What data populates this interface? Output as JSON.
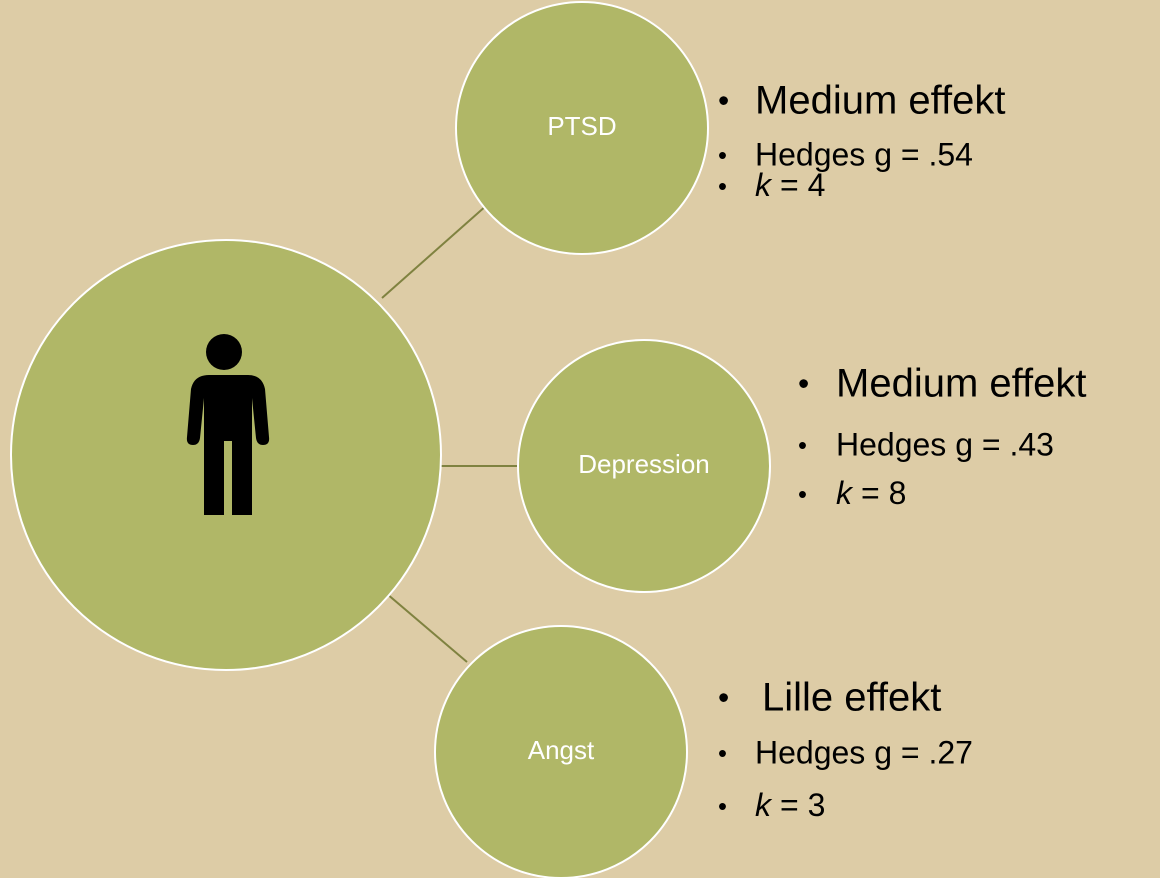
{
  "nodes": [
    {
      "label": "PTSD",
      "effect": "Medium effekt",
      "hedges": "Hedges g = .54",
      "k": {
        "symbol": "k",
        "text": "= 4"
      }
    },
    {
      "label": "Depression",
      "effect": "Medium effekt",
      "hedges": "Hedges g = .43",
      "k": {
        "symbol": "k",
        "text": "= 8"
      }
    },
    {
      "label": "Angst",
      "effect": "Lille effekt",
      "hedges": "Hedges g = .27",
      "k": {
        "symbol": "k",
        "text": "= 3"
      }
    }
  ]
}
